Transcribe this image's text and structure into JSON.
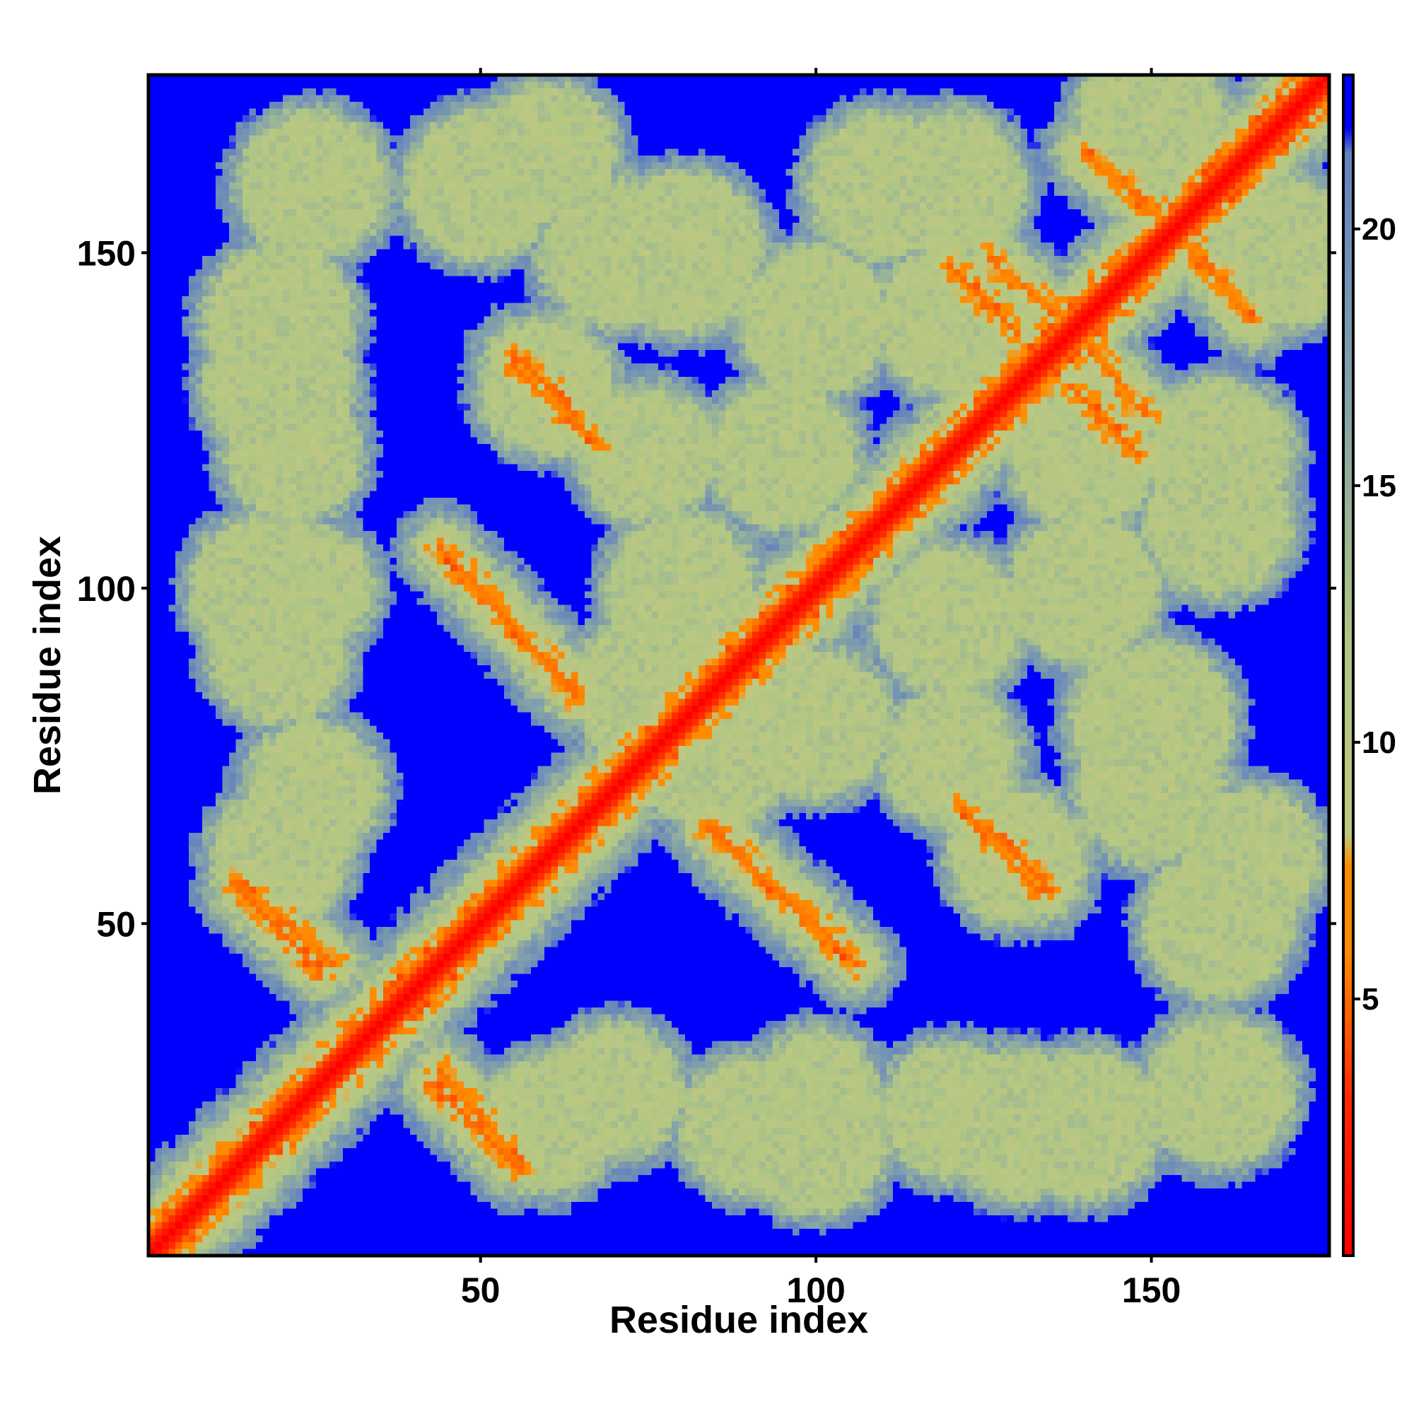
{
  "chart_data": {
    "type": "heatmap",
    "title": "",
    "xlabel": "Residue index",
    "ylabel": "Residue index",
    "n_residues": 176,
    "xlim": [
      1,
      176
    ],
    "ylim": [
      1,
      176
    ],
    "x_ticks": [
      50,
      100,
      150
    ],
    "y_ticks": [
      50,
      100,
      150
    ],
    "x_tick_labels": [
      "50",
      "100",
      "150"
    ],
    "y_tick_labels": [
      "50",
      "100",
      "150"
    ],
    "colorbar": {
      "range": [
        0,
        23
      ],
      "ticks": [
        5,
        10,
        15,
        20
      ],
      "tick_labels": [
        "5",
        "10",
        "15",
        "20"
      ],
      "colors": [
        "#ff0000",
        "#ff8c00",
        "#b4c882",
        "#6e8cb4",
        "#0000ff"
      ]
    },
    "contact_bands": [
      {
        "i": [
          1,
          176
        ],
        "j": [
          1,
          176
        ],
        "value": 0
      },
      {
        "i": [
          55,
          67
        ],
        "j": [
          133,
          122
        ],
        "value": 5
      },
      {
        "i": [
          44,
          64
        ],
        "j": [
          106,
          84
        ],
        "value": 5
      },
      {
        "i": [
          85,
          106
        ],
        "j": [
          64,
          44
        ],
        "value": 5
      },
      {
        "i": [
          126,
          135
        ],
        "j": [
          64,
          55
        ],
        "value": 5
      },
      {
        "i": [
          14,
          28
        ],
        "j": [
          56,
          44
        ],
        "value": 5
      },
      {
        "i": [
          43,
          55
        ],
        "j": [
          26,
          14
        ],
        "value": 5
      },
      {
        "i": [
          138,
          148
        ],
        "j": [
          130,
          120
        ],
        "value": 5
      },
      {
        "i": [
          126,
          137
        ],
        "j": [
          149,
          140
        ],
        "value": 5
      },
      {
        "i": [
          140,
          155
        ],
        "j": [
          165,
          152
        ],
        "value": 5
      }
    ]
  }
}
